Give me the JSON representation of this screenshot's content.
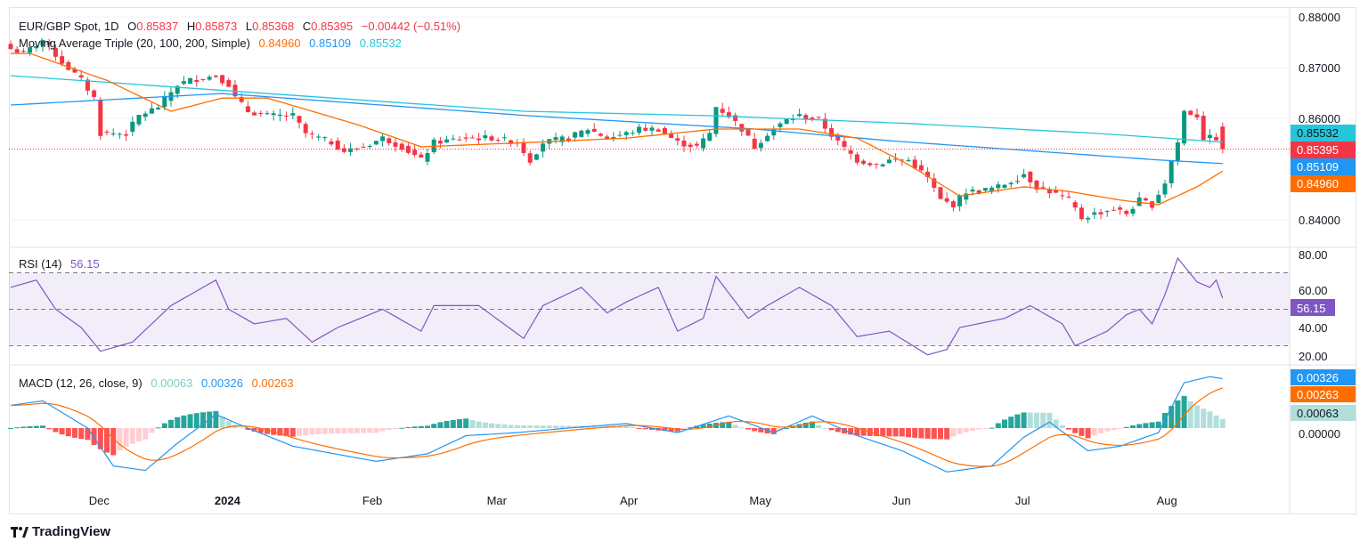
{
  "header": {
    "symbol": "EUR/GBP Spot, 1D",
    "o_label": "O",
    "o": "0.85837",
    "h_label": "H",
    "h": "0.85873",
    "l_label": "L",
    "l": "0.85368",
    "c_label": "C",
    "c": "0.85395",
    "change": "−0.00442 (−0.51%)"
  },
  "ma_legend": {
    "title": "Moving Average Triple (20, 100, 200, Simple)",
    "ma20": "0.84960",
    "ma100": "0.85109",
    "ma200": "0.85532"
  },
  "rsi_legend": {
    "title": "RSI (14)",
    "value": "56.15"
  },
  "macd_legend": {
    "title": "MACD (12, 26, close, 9)",
    "hist": "0.00063",
    "macd": "0.00326",
    "signal": "0.00263"
  },
  "branding": "TradingView",
  "colors": {
    "up": "#089981",
    "down": "#f23645",
    "ma20": "#ff6d00",
    "ma100": "#2196f3",
    "ma200": "#26c6da",
    "rsi": "#7e57c2",
    "macd": "#2196f3",
    "signal": "#ff6d00"
  },
  "chart_data": {
    "type": "candlestick",
    "days": 190,
    "price_axis": {
      "ylim": [
        0.8355,
        0.882
      ],
      "ticks": [
        "0.88000",
        "0.87000",
        "0.86000",
        "0.84000"
      ],
      "tick_values": [
        0.88,
        0.87,
        0.86,
        0.84
      ]
    },
    "price_labels": [
      {
        "text": "0.85532",
        "value": 0.85532,
        "color": "#26c6da"
      },
      {
        "text": "0.85395",
        "value": 0.85395,
        "color": "#f23645"
      },
      {
        "text": "0.85109",
        "value": 0.85109,
        "color": "#2196f3"
      },
      {
        "text": "0.84960",
        "value": 0.8496,
        "color": "#ff6d00"
      }
    ],
    "time_ticks": [
      {
        "label": "Dec",
        "day": 13.8
      },
      {
        "label": "2024",
        "day": 33.8,
        "bold": true
      },
      {
        "label": "Feb",
        "day": 56.4
      },
      {
        "label": "Mar",
        "day": 75.8
      },
      {
        "label": "Apr",
        "day": 96.4
      },
      {
        "label": "May",
        "day": 116.9
      },
      {
        "label": "Jun",
        "day": 138.9
      },
      {
        "label": "Jul",
        "day": 157.8
      },
      {
        "label": "Aug",
        "day": 180.3
      }
    ],
    "close_keypoints": [
      [
        0,
        0.87368
      ],
      [
        2,
        0.87281
      ],
      [
        5,
        0.87544
      ],
      [
        8,
        0.87105
      ],
      [
        11,
        0.86754
      ],
      [
        13,
        0.86404
      ],
      [
        14,
        0.85702
      ],
      [
        18,
        0.85702
      ],
      [
        20,
        0.86053
      ],
      [
        23,
        0.86228
      ],
      [
        26,
        0.86667
      ],
      [
        28,
        0.86754
      ],
      [
        32,
        0.86842
      ],
      [
        34,
        0.86667
      ],
      [
        35,
        0.86404
      ],
      [
        37,
        0.8614
      ],
      [
        40,
        0.86053
      ],
      [
        44,
        0.86053
      ],
      [
        46,
        0.85702
      ],
      [
        50,
        0.85526
      ],
      [
        52,
        0.85351
      ],
      [
        55,
        0.85439
      ],
      [
        58,
        0.85614
      ],
      [
        61,
        0.85439
      ],
      [
        64,
        0.85175
      ],
      [
        66,
        0.85526
      ],
      [
        71,
        0.85614
      ],
      [
        75,
        0.85614
      ],
      [
        79,
        0.85526
      ],
      [
        81,
        0.85175
      ],
      [
        83,
        0.85526
      ],
      [
        87,
        0.85614
      ],
      [
        90,
        0.8579
      ],
      [
        93,
        0.85614
      ],
      [
        96,
        0.85702
      ],
      [
        98,
        0.8579
      ],
      [
        101,
        0.8579
      ],
      [
        104,
        0.85526
      ],
      [
        107,
        0.85439
      ],
      [
        109,
        0.85702
      ],
      [
        110,
        0.86228
      ],
      [
        112,
        0.86053
      ],
      [
        114,
        0.8579
      ],
      [
        116,
        0.85439
      ],
      [
        118,
        0.85702
      ],
      [
        121,
        0.85965
      ],
      [
        123,
        0.86053
      ],
      [
        126,
        0.85965
      ],
      [
        129,
        0.85526
      ],
      [
        132,
        0.85175
      ],
      [
        135,
        0.85088
      ],
      [
        137,
        0.85175
      ],
      [
        140,
        0.85175
      ],
      [
        143,
        0.84825
      ],
      [
        145,
        0.84386
      ],
      [
        147,
        0.84298
      ],
      [
        149,
        0.84561
      ],
      [
        151,
        0.84561
      ],
      [
        154,
        0.84649
      ],
      [
        157,
        0.84825
      ],
      [
        158,
        0.84912
      ],
      [
        160,
        0.84649
      ],
      [
        162,
        0.84561
      ],
      [
        165,
        0.84386
      ],
      [
        167,
        0.84035
      ],
      [
        169,
        0.84123
      ],
      [
        172,
        0.8421
      ],
      [
        174,
        0.84123
      ],
      [
        176,
        0.84386
      ],
      [
        178,
        0.84298
      ],
      [
        180,
        0.84737
      ],
      [
        181,
        0.85175
      ],
      [
        182,
        0.85526
      ],
      [
        183,
        0.8614
      ],
      [
        185,
        0.86053
      ],
      [
        186,
        0.85614
      ],
      [
        188,
        0.85614
      ],
      [
        189,
        0.85395
      ]
    ],
    "ma200_keypoints": [
      [
        0,
        0.86842
      ],
      [
        40,
        0.8649
      ],
      [
        80,
        0.8614
      ],
      [
        110,
        0.8605
      ],
      [
        140,
        0.859
      ],
      [
        170,
        0.857
      ],
      [
        189,
        0.85532
      ]
    ],
    "ma100_keypoints": [
      [
        0,
        0.86263
      ],
      [
        33,
        0.8649
      ],
      [
        81,
        0.8605
      ],
      [
        116,
        0.8579
      ],
      [
        137,
        0.8556
      ],
      [
        179,
        0.8518
      ],
      [
        189,
        0.85109
      ]
    ],
    "ma20_keypoints": [
      [
        0,
        0.8728
      ],
      [
        3,
        0.8728
      ],
      [
        15,
        0.8675
      ],
      [
        25,
        0.8614
      ],
      [
        33,
        0.864
      ],
      [
        40,
        0.864
      ],
      [
        54,
        0.8588
      ],
      [
        64,
        0.8544
      ],
      [
        82,
        0.8553
      ],
      [
        96,
        0.8561
      ],
      [
        110,
        0.8579
      ],
      [
        123,
        0.8579
      ],
      [
        132,
        0.8561
      ],
      [
        140,
        0.8509
      ],
      [
        148,
        0.8447
      ],
      [
        158,
        0.8465
      ],
      [
        165,
        0.8456
      ],
      [
        173,
        0.8439
      ],
      [
        179,
        0.843
      ],
      [
        185,
        0.8465
      ],
      [
        189,
        0.8496
      ]
    ],
    "rsi": {
      "ylim": [
        18,
        82
      ],
      "ticks": [
        "80.00",
        "60.00",
        "40.00",
        "20.00"
      ],
      "tick_values": [
        80,
        60,
        40,
        20
      ],
      "bands": [
        70,
        50,
        30
      ],
      "keypoints": [
        [
          0,
          62
        ],
        [
          4,
          66
        ],
        [
          7,
          50
        ],
        [
          11,
          40
        ],
        [
          14,
          27
        ],
        [
          19,
          32
        ],
        [
          25,
          52
        ],
        [
          30,
          62
        ],
        [
          32,
          66
        ],
        [
          34,
          50
        ],
        [
          38,
          42
        ],
        [
          43,
          45
        ],
        [
          47,
          32
        ],
        [
          51,
          40
        ],
        [
          58,
          50
        ],
        [
          64,
          38
        ],
        [
          66,
          52
        ],
        [
          73,
          52
        ],
        [
          80,
          34
        ],
        [
          83,
          52
        ],
        [
          89,
          62
        ],
        [
          93,
          48
        ],
        [
          96,
          54
        ],
        [
          101,
          62
        ],
        [
          104,
          38
        ],
        [
          108,
          45
        ],
        [
          110,
          68
        ],
        [
          115,
          45
        ],
        [
          118,
          52
        ],
        [
          123,
          62
        ],
        [
          128,
          52
        ],
        [
          132,
          35
        ],
        [
          137,
          38
        ],
        [
          143,
          25
        ],
        [
          146,
          28
        ],
        [
          148,
          40
        ],
        [
          155,
          45
        ],
        [
          159,
          52
        ],
        [
          164,
          42
        ],
        [
          166,
          30
        ],
        [
          171,
          38
        ],
        [
          174,
          47
        ],
        [
          176,
          50
        ],
        [
          178,
          42
        ],
        [
          180,
          58
        ],
        [
          182,
          78
        ],
        [
          185,
          65
        ],
        [
          187,
          62
        ],
        [
          188,
          66
        ],
        [
          189,
          56.15
        ]
      ]
    },
    "macd": {
      "ylim": [
        -0.0034,
        0.0043
      ],
      "ticks": [
        "0.00000"
      ],
      "tick_values": [
        0
      ],
      "macd_keypoints": [
        [
          0,
          0.0015
        ],
        [
          5,
          0.0018
        ],
        [
          12,
          0
        ],
        [
          16,
          -0.0025
        ],
        [
          21,
          -0.0028
        ],
        [
          26,
          -0.001
        ],
        [
          32,
          0.0009
        ],
        [
          37,
          0
        ],
        [
          44,
          -0.0012
        ],
        [
          57,
          -0.0022
        ],
        [
          65,
          -0.0017
        ],
        [
          71,
          -0.0005
        ],
        [
          79,
          -0.0003
        ],
        [
          87,
          0
        ],
        [
          96,
          0.0003
        ],
        [
          104,
          -0.0003
        ],
        [
          112,
          0.0008
        ],
        [
          119,
          -0.0003
        ],
        [
          125,
          0.0008
        ],
        [
          132,
          -0.0005
        ],
        [
          139,
          -0.0015
        ],
        [
          146,
          -0.0029
        ],
        [
          153,
          -0.0025
        ],
        [
          158,
          -0.0006
        ],
        [
          162,
          0.0004
        ],
        [
          168,
          -0.0015
        ],
        [
          173,
          -0.0012
        ],
        [
          179,
          -0.0003
        ],
        [
          183,
          0.003
        ],
        [
          187,
          0.0034
        ],
        [
          189,
          0.00326
        ]
      ]
    }
  }
}
